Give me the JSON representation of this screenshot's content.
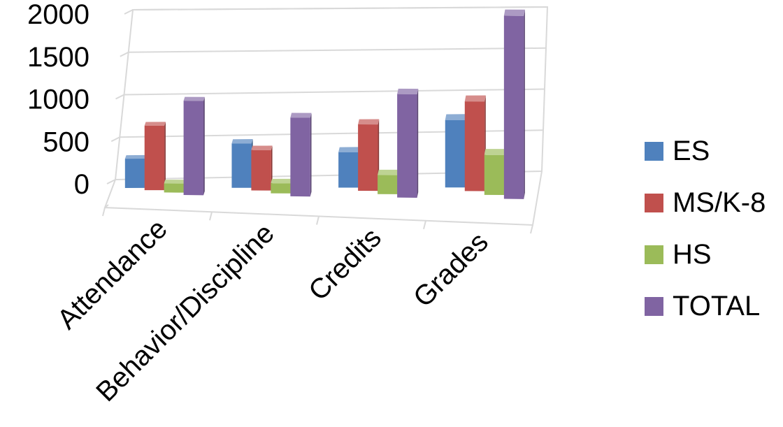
{
  "chart_data": {
    "type": "bar",
    "categories": [
      "Attendance",
      "Behavior/Discipline",
      "Credits",
      "Grades"
    ],
    "series": [
      {
        "name": "ES",
        "values": [
          330,
          500,
          400,
          760
        ],
        "color": "#4f81bd"
      },
      {
        "name": "MS/K-8",
        "values": [
          720,
          450,
          740,
          1000
        ],
        "color": "#c0504d"
      },
      {
        "name": "HS",
        "values": [
          100,
          110,
          210,
          440
        ],
        "color": "#9bbb59"
      },
      {
        "name": "TOTAL",
        "values": [
          1030,
          860,
          1130,
          2000
        ],
        "color": "#8064a2"
      }
    ],
    "y_ticks": [
      "0",
      "500",
      "1000",
      "1500",
      "2000"
    ],
    "ylim": [
      0,
      2000
    ],
    "grid": true,
    "legend_position": "right",
    "style": "3d-clustered-column"
  }
}
